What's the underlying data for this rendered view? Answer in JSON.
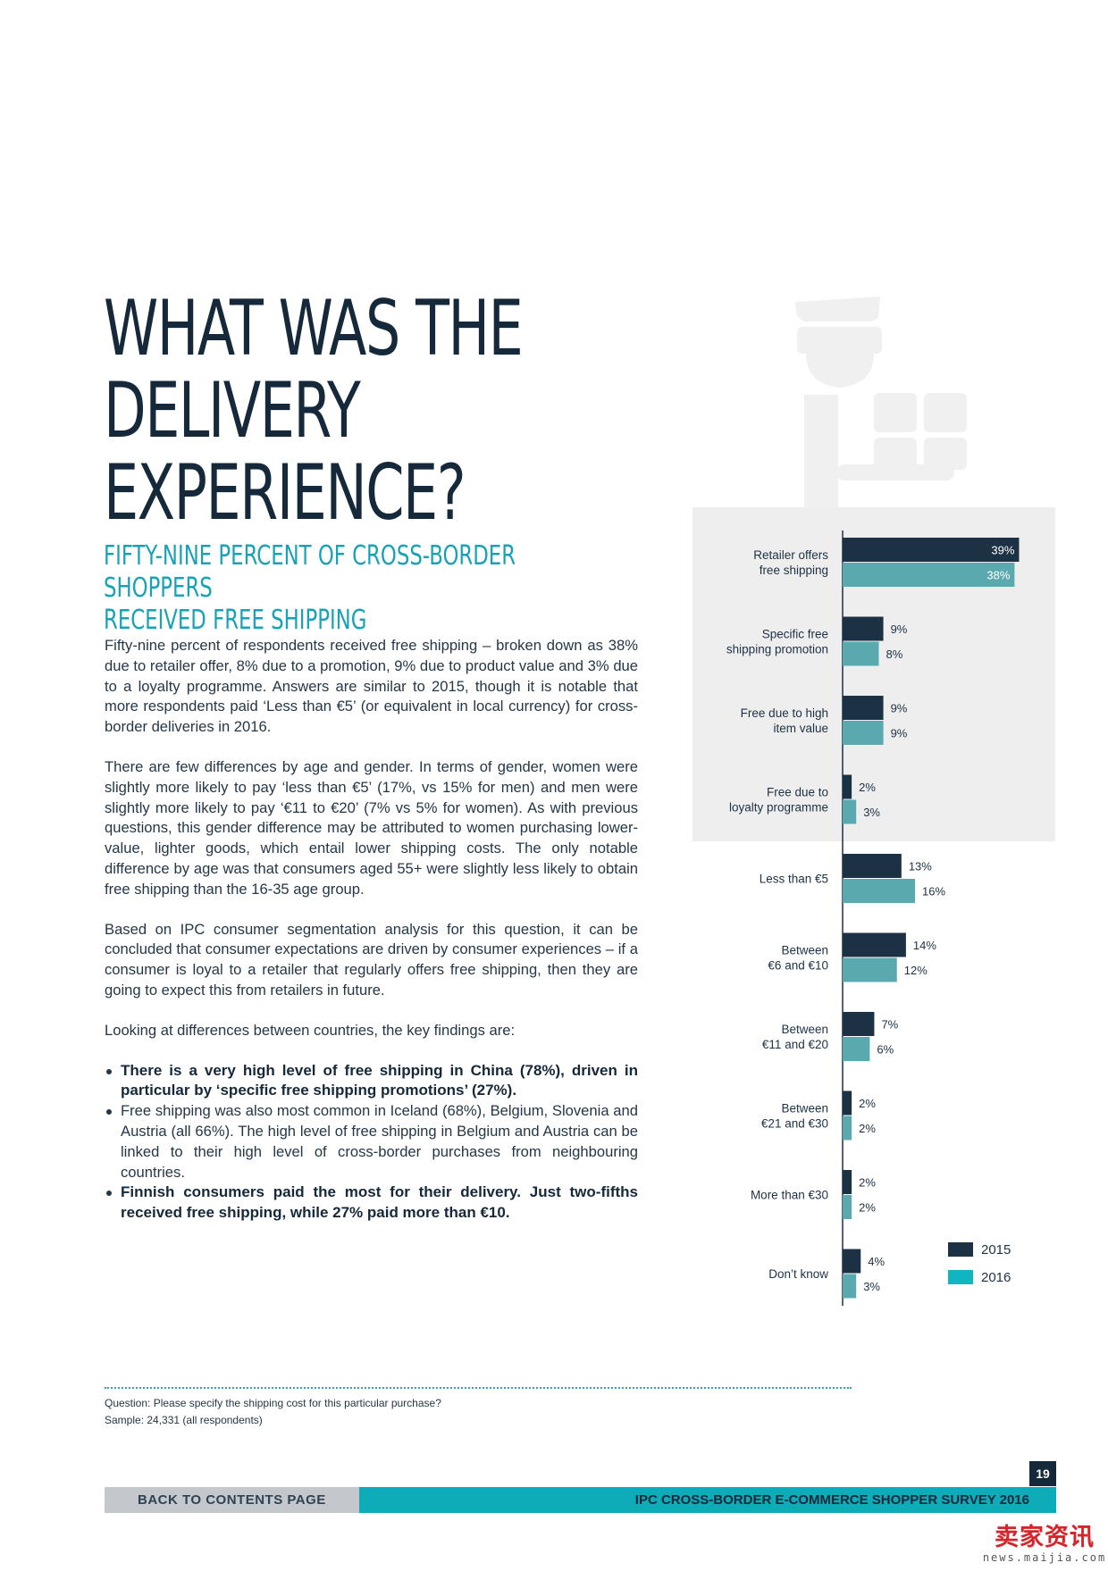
{
  "page": {
    "title": "WHAT WAS THE DELIVERY\nEXPERIENCE?",
    "subtitle": "FIFTY-NINE PERCENT OF CROSS-BORDER SHOPPERS\nRECEIVED FREE SHIPPING",
    "illustration_icon": "delivery-person-icon"
  },
  "body": {
    "paragraphs": [
      "Fifty-nine percent of respondents received free shipping – broken down as 38% due to retailer offer, 8% due to a promotion, 9% due to product value and 3% due to a loyalty programme. Answers are similar to 2015, though it is notable that more respondents paid ‘Less than €5’ (or equivalent in local currency) for cross-border deliveries in 2016.",
      "There are few differences by age and gender. In terms of gender, women were slightly more likely to pay ‘less than €5’ (17%, vs 15% for men) and men were slightly more likely to pay ‘€11 to €20’ (7% vs 5% for women). As with previous questions, this gender difference may be attributed to women purchasing lower-value, lighter goods, which entail lower shipping costs. The only notable difference by age was that consumers aged 55+ were slightly less likely to obtain free shipping than the 16-35 age group.",
      "Based on IPC consumer segmentation analysis for this question, it can be concluded that consumer expectations are driven by consumer experiences – if a consumer is loyal to a retailer that regularly offers free shipping, then they are going to expect this from retailers in future.",
      "Looking at differences between countries, the key findings are:"
    ],
    "bullets": [
      "There is a very high level of free shipping in China (78%), driven in particular by ‘specific free shipping promotions’ (27%).",
      "Free shipping was also most common in Iceland (68%), Belgium, Slovenia and Austria (all 66%). The high level of free shipping in Belgium and Austria can be linked to their high level of cross-border purchases from neighbouring countries.",
      "Finnish consumers paid the most for their delivery. Just two-fifths received free shipping, while 27% paid more than €10."
    ]
  },
  "footnote": {
    "question": "Question: Please specify the shipping cost for this particular purchase?",
    "sample": "Sample: 24,331 (all respondents)"
  },
  "footer": {
    "page_number": "19",
    "back_label": "BACK TO CONTENTS PAGE",
    "survey_title": "IPC CROSS-BORDER E-COMMERCE SHOPPER SURVEY 2016"
  },
  "watermark": {
    "text": "卖家资讯",
    "url": "news.maijia.com"
  },
  "chart_data": {
    "type": "bar",
    "orientation": "horizontal",
    "categories": [
      "Retailer offers\nfree shipping",
      "Specific free\nshipping promotion",
      "Free due to high\nitem value",
      "Free due to\nloyalty programme",
      "Less than €5",
      "Between\n€6 and €10",
      "Between\n€11 and €20",
      "Between\n€21 and €30",
      "More than €30",
      "Don’t know"
    ],
    "highlighted_categories": 4,
    "series": [
      {
        "name": "2015",
        "values": [
          39,
          9,
          9,
          2,
          13,
          14,
          7,
          2,
          2,
          4
        ],
        "labels": [
          "39%",
          "9%",
          "9%",
          "2%",
          "13%",
          "14%",
          "7%",
          "2%",
          "2%",
          "4%"
        ]
      },
      {
        "name": "2016",
        "values": [
          38,
          8,
          9,
          3,
          16,
          12,
          6,
          2,
          2,
          3
        ],
        "labels": [
          "38%",
          "8%",
          "9%",
          "3%",
          "16%",
          "12%",
          "6%",
          "2%",
          "2%",
          "3%"
        ]
      }
    ],
    "colors": {
      "2015": "#1d3144",
      "2016": "#5aa9af",
      "legend_2016": "#10b5c1",
      "highlight_bg": "#eeeeee",
      "axis": "#1d3144"
    },
    "legend_position": "bottom-right",
    "xlim": [
      0,
      40
    ]
  }
}
